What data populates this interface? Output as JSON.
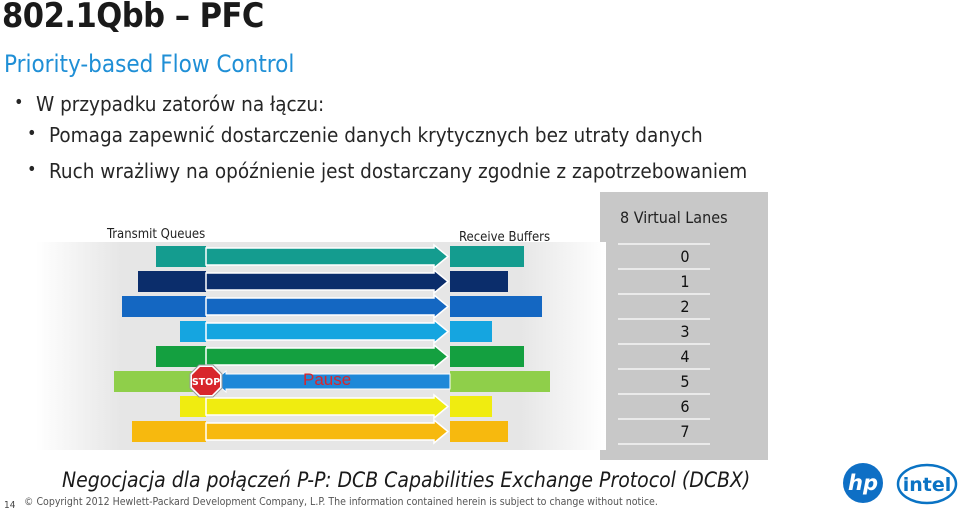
{
  "header": {
    "title": "802.1Qbb – PFC",
    "subtitle": "Priority-based Flow Control"
  },
  "bullets": [
    "W przypadku zatorów na łączu:",
    "Pomaga zapewnić dostarczenie danych krytycznych bez utraty danych",
    "Ruch wrażliwy na opóźnienie jest dostarczany zgodnie z zapotrzebowaniem"
  ],
  "diagram": {
    "transmit_label": "Transmit Queues",
    "receive_label": "Receive Buffers",
    "lanes_label": "8 Virtual Lanes",
    "lane_numbers": [
      "0",
      "1",
      "2",
      "3",
      "4",
      "5",
      "6",
      "7"
    ],
    "lane_colors": [
      "#149c8f",
      "#0b2d6b",
      "#1467c2",
      "#15a5e0",
      "#14a040",
      "#8fcf4a",
      "#f0ec10",
      "#f7b90e"
    ],
    "paused_lane": 5,
    "stop_text": "STOP",
    "pause_text": "Pause",
    "lanes_panel_color": "#c8c8c8"
  },
  "footer": {
    "protocol_text": "Negocjacja dla połączeń P-P: DCB Capabilities Exchange Protocol (DCBX)",
    "page_number": "14",
    "copyright": "© Copyright 2012 Hewlett-Packard Development Company, L.P. The information contained herein is subject to change without notice.",
    "hp_logo_text": "hp",
    "intel_logo_text": "intel"
  }
}
